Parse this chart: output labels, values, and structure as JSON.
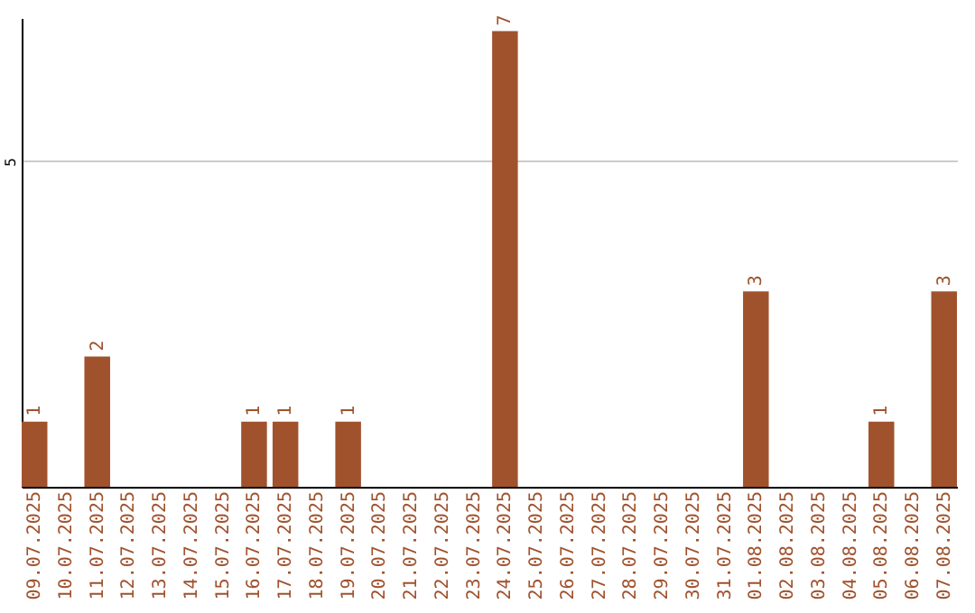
{
  "chart_data": {
    "type": "bar",
    "categories": [
      "09.07.2025",
      "10.07.2025",
      "11.07.2025",
      "12.07.2025",
      "13.07.2025",
      "14.07.2025",
      "15.07.2025",
      "16.07.2025",
      "17.07.2025",
      "18.07.2025",
      "19.07.2025",
      "20.07.2025",
      "21.07.2025",
      "22.07.2025",
      "23.07.2025",
      "24.07.2025",
      "25.07.2025",
      "26.07.2025",
      "27.07.2025",
      "28.07.2025",
      "29.07.2025",
      "30.07.2025",
      "31.07.2025",
      "01.08.2025",
      "02.08.2025",
      "03.08.2025",
      "04.08.2025",
      "05.08.2025",
      "06.08.2025",
      "07.08.2025"
    ],
    "values": [
      1,
      0,
      2,
      0,
      0,
      0,
      0,
      1,
      1,
      0,
      1,
      0,
      0,
      0,
      0,
      7,
      0,
      0,
      0,
      0,
      0,
      0,
      0,
      3,
      0,
      0,
      0,
      1,
      0,
      3
    ],
    "value_labels": [
      "1",
      null,
      "2",
      null,
      null,
      null,
      null,
      "1",
      "1",
      null,
      "1",
      null,
      null,
      null,
      null,
      "7",
      null,
      null,
      null,
      null,
      null,
      null,
      null,
      "3",
      null,
      null,
      null,
      "1",
      null,
      "3"
    ],
    "color": "#a0522d",
    "ylim": [
      0,
      7.2
    ],
    "yticks": [
      {
        "value": 0,
        "label": null
      },
      5
    ],
    "grid": "y"
  }
}
